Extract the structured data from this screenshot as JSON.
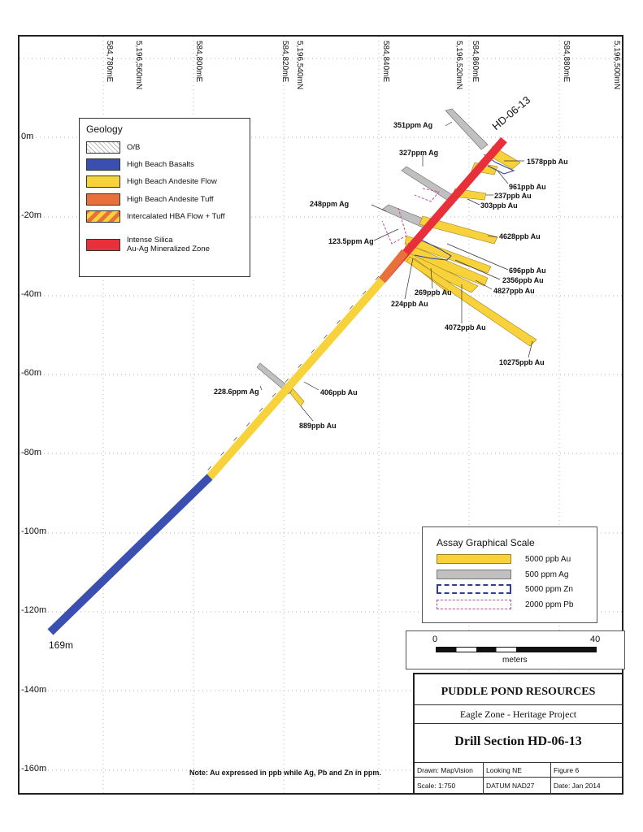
{
  "eastings": [
    "584,780mE",
    "584,800mE",
    "584,820mE",
    "584,840mE",
    "584,860mE",
    "584,880mE"
  ],
  "northings": [
    "5,196,560mN",
    "5,196,540mN",
    "5,196,520mN",
    "5,196,500mN"
  ],
  "elevations": [
    "0m",
    "-20m",
    "-40m",
    "-60m",
    "-80m",
    "-100m",
    "-120m",
    "-140m",
    "-160m"
  ],
  "hole": {
    "id": "HD-06-13",
    "depth": "169m"
  },
  "assay_labels": {
    "ag351": "351ppm Ag",
    "ag327": "327ppm Ag",
    "ag248": "248ppm Ag",
    "ag123": "123.5ppm Ag",
    "ag228": "228.6ppm Ag",
    "au1578": "1578ppb Au",
    "au961": "961ppb Au",
    "au237": "237ppb Au",
    "au303": "303ppb Au",
    "au4628": "4628ppb Au",
    "au696": "696ppb Au",
    "au2356": "2356ppb Au",
    "au4827": "4827ppb Au",
    "au269": "269ppb Au",
    "au224": "224ppb Au",
    "au4072": "4072ppb Au",
    "au10275": "10275ppb Au",
    "au406": "406ppb Au",
    "au889": "889ppb Au"
  },
  "geology": {
    "title": "Geology",
    "items": [
      {
        "label": "O/B",
        "color": "#f2f2f2"
      },
      {
        "label": "High Beach Basalts",
        "color": "#3a4fb0"
      },
      {
        "label": "High Beach Andesite Flow",
        "color": "#f7d23a"
      },
      {
        "label": "High Beach Andesite Tuff",
        "color": "#e8703a"
      },
      {
        "label": "Intercalated HBA Flow + Tuff",
        "color": "#f0a030"
      },
      {
        "label": "Intense Silica",
        "color": "#e8303a"
      },
      {
        "label": "Au-Ag Mineralized Zone",
        "color": "#e8303a"
      }
    ]
  },
  "assay_scale": {
    "title": "Assay Graphical Scale",
    "items": [
      {
        "label": "5000 ppb Au",
        "color": "#f7d23a"
      },
      {
        "label": "500 ppm Ag",
        "color": "#c0c0c0"
      },
      {
        "label": "5000 ppm Zn",
        "color": "#2a3f9a"
      },
      {
        "label": "2000 ppm Pb",
        "color": "#c04aa0"
      }
    ]
  },
  "scale_bar": {
    "start": "0",
    "end": "40",
    "unit": "meters"
  },
  "title_block": {
    "company": "PUDDLE POND RESOURCES",
    "project": "Eagle Zone - Heritage Project",
    "title": "Drill Section HD-06-13",
    "drawn": "Drawn: MapVision",
    "looking": "Looking NE",
    "figure": "Figure 6",
    "scale": "Scale:  1:750",
    "datum": "DATUM NAD27",
    "date": "Date:  Jan 2014"
  },
  "note": "Note: Au expressed in ppb while Ag, Pb and Zn in ppm."
}
